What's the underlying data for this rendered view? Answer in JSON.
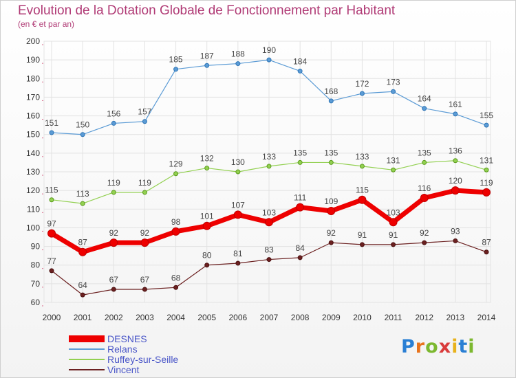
{
  "title": "Evolution de la Dotation Globale de Fonctionnement par Habitant",
  "subtitle": "(en € et par an)",
  "logo": "Proxiti",
  "chart_data": {
    "type": "line",
    "x": [
      "2000",
      "2001",
      "2002",
      "2003",
      "2004",
      "2005",
      "2006",
      "2007",
      "2008",
      "2009",
      "2010",
      "2011",
      "2012",
      "2013",
      "2014"
    ],
    "ylim": [
      60,
      200
    ],
    "yticks": [
      60,
      70,
      80,
      90,
      100,
      110,
      120,
      130,
      140,
      150,
      160,
      170,
      180,
      190,
      200
    ],
    "grid": true,
    "series": [
      {
        "name": "DESNES",
        "color": "#ee0000",
        "values": [
          97,
          87,
          92,
          92,
          98,
          101,
          107,
          103,
          111,
          109,
          115,
          103,
          116,
          120,
          119
        ]
      },
      {
        "name": "Relans",
        "color": "#5b9bd5",
        "values": [
          151,
          150,
          156,
          157,
          185,
          187,
          188,
          190,
          184,
          168,
          172,
          173,
          164,
          161,
          155
        ]
      },
      {
        "name": "Ruffey-sur-Seille",
        "color": "#92d050",
        "values": [
          115,
          113,
          119,
          119,
          129,
          132,
          130,
          133,
          135,
          135,
          133,
          131,
          135,
          136,
          131
        ]
      },
      {
        "name": "Vincent",
        "color": "#6b2020",
        "values": [
          77,
          64,
          67,
          67,
          68,
          80,
          81,
          83,
          84,
          92,
          91,
          91,
          92,
          93,
          87
        ]
      }
    ]
  }
}
